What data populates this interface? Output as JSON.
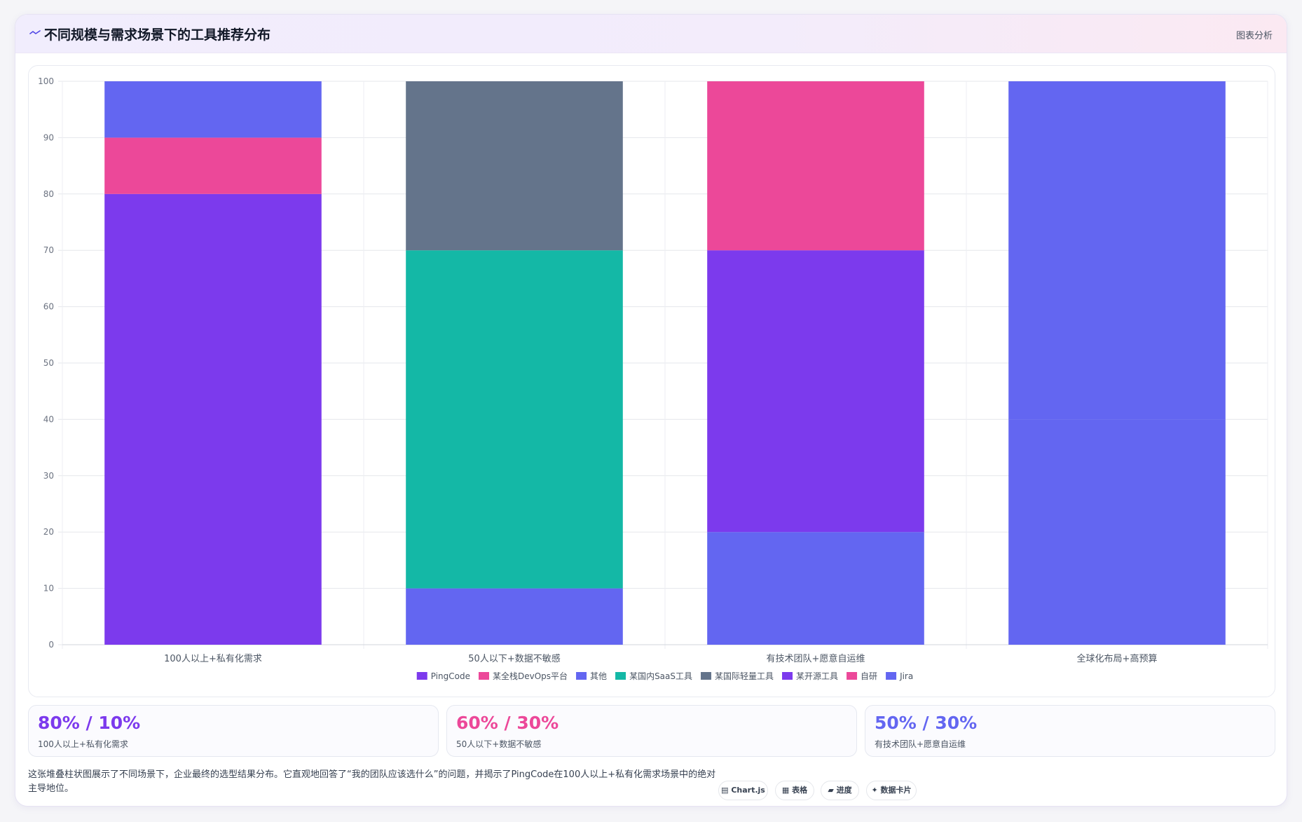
{
  "header": {
    "icon": "chart-line-icon",
    "title": "不同规模与需求场景下的工具推荐分布",
    "action_label": "图表分析"
  },
  "chart_data": {
    "type": "bar",
    "stacked": true,
    "categories": [
      "100人以上+私有化需求",
      "50人以下+数据不敏感",
      "有技术团队+愿意自运维",
      "全球化布局+高预算"
    ],
    "series": [
      {
        "name": "PingCode",
        "color": "#7c3aed",
        "values": [
          80,
          0,
          0,
          0
        ]
      },
      {
        "name": "某全栈DevOps平台",
        "color": "#ec4899",
        "values": [
          10,
          0,
          0,
          0
        ]
      },
      {
        "name": "其他",
        "color": "#6366f1",
        "values": [
          10,
          10,
          20,
          0
        ]
      },
      {
        "name": "某国内SaaS工具",
        "color": "#14b8a6",
        "values": [
          0,
          60,
          0,
          0
        ]
      },
      {
        "name": "某国际轻量工具",
        "color": "#64748b",
        "values": [
          0,
          30,
          0,
          0
        ]
      },
      {
        "name": "某开源工具",
        "color": "#7c3aed",
        "values": [
          0,
          0,
          50,
          0
        ]
      },
      {
        "name": "自研",
        "color": "#ec4899",
        "values": [
          0,
          0,
          30,
          0
        ]
      },
      {
        "name": "Jira",
        "color": "#6366f1",
        "values": [
          0,
          0,
          0,
          40
        ]
      },
      {
        "name": "其他",
        "color": "#6366f1",
        "values": [
          0,
          0,
          0,
          60
        ],
        "legend": false
      }
    ],
    "ylim": [
      0,
      100
    ],
    "yticks": [
      0,
      10,
      20,
      30,
      40,
      50,
      60,
      70,
      80,
      90,
      100
    ],
    "grid": true,
    "legend_position": "bottom"
  },
  "stats": [
    {
      "value": "80% / 10%",
      "label": "100人以上+私有化需求",
      "color": "#7c3aed"
    },
    {
      "value": "60% / 30%",
      "label": "50人以下+数据不敏感",
      "color": "#ec4899"
    },
    {
      "value": "50% / 30%",
      "label": "有技术团队+愿意自运维",
      "color": "#6366f1"
    }
  ],
  "description": "这张堆叠柱状图展示了不同场景下，企业最终的选型结果分布。它直观地回答了“我的团队应该选什么”的问题，并揭示了PingCode在100人以上+私有化需求场景中的绝对主导地位。",
  "tags": [
    {
      "icon": "chart-icon",
      "label": "▤ Chart.js"
    },
    {
      "icon": "table-icon",
      "label": "▦ 表格"
    },
    {
      "icon": "progress-icon",
      "label": "▰ 进度"
    },
    {
      "icon": "card-icon",
      "label": "✦ 数据卡片"
    }
  ]
}
